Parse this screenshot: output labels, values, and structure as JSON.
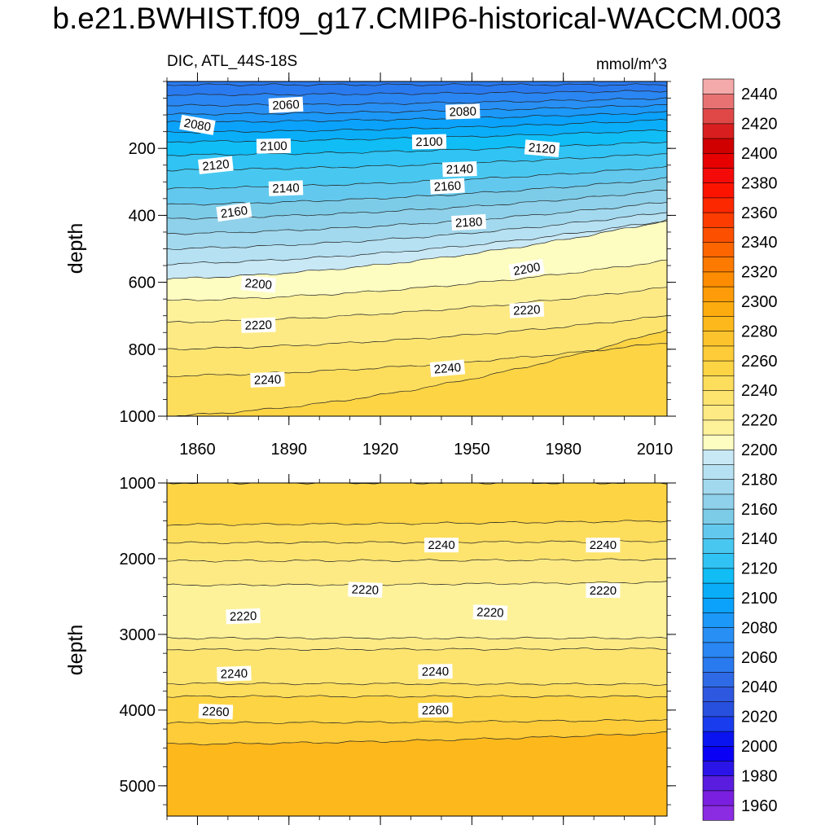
{
  "title": "b.e21.BWHIST.f09_g17.CMIP6-historical-WACCM.003",
  "chart_data": {
    "type": "contour",
    "variable": "DIC",
    "region": "ATL_44S-18S",
    "units": "mmol/m^3",
    "x_ticks": [
      1860,
      1890,
      1920,
      1950,
      1980,
      2010
    ],
    "xlim": [
      1850,
      2014
    ],
    "top_panel": {
      "ylabel": "depth",
      "ylim": [
        0,
        1000
      ],
      "y_ticks": [
        200,
        400,
        600,
        800,
        1000
      ],
      "contours": [
        {
          "level": 2050,
          "depth_start": 10,
          "depth_end": 10
        },
        {
          "level": 2060,
          "depth_start": 40,
          "depth_end": 28
        },
        {
          "level": 2070,
          "depth_start": 72,
          "depth_end": 50
        },
        {
          "level": 2080,
          "depth_start": 98,
          "depth_end": 70
        },
        {
          "level": 2090,
          "depth_start": 122,
          "depth_end": 92
        },
        {
          "level": 2100,
          "depth_start": 152,
          "depth_end": 115
        },
        {
          "level": 2110,
          "depth_start": 180,
          "depth_end": 145
        },
        {
          "level": 2120,
          "depth_start": 220,
          "depth_end": 180
        },
        {
          "level": 2130,
          "depth_start": 265,
          "depth_end": 215
        },
        {
          "level": 2140,
          "depth_start": 320,
          "depth_end": 255
        },
        {
          "level": 2150,
          "depth_start": 368,
          "depth_end": 290
        },
        {
          "level": 2160,
          "depth_start": 410,
          "depth_end": 325
        },
        {
          "level": 2170,
          "depth_start": 455,
          "depth_end": 360
        },
        {
          "level": 2180,
          "depth_start": 500,
          "depth_end": 390
        },
        {
          "level": 2190,
          "depth_start": 545,
          "depth_end": 415
        },
        {
          "level": 2200,
          "depth_start": 590,
          "depth_end": 415
        },
        {
          "level": 2210,
          "depth_start": 655,
          "depth_end": 535
        },
        {
          "level": 2220,
          "depth_start": 720,
          "depth_end": 615
        },
        {
          "level": 2230,
          "depth_start": 800,
          "depth_end": 700
        },
        {
          "level": 2240,
          "depth_start": 880,
          "depth_end": 780
        },
        {
          "level": 2250,
          "depth_start": 1000,
          "depth_end": 740
        }
      ],
      "labels": [
        {
          "text": "2060",
          "year": 1889,
          "depth": 70,
          "angle": -3
        },
        {
          "text": "2080",
          "year": 1947,
          "depth": 90,
          "angle": -2
        },
        {
          "text": "2080",
          "year": 1860,
          "depth": 130,
          "angle": 10
        },
        {
          "text": "2100",
          "year": 1885,
          "depth": 193,
          "angle": -1
        },
        {
          "text": "2100",
          "year": 1936,
          "depth": 180,
          "angle": -1
        },
        {
          "text": "2120",
          "year": 1973,
          "depth": 200,
          "angle": 5
        },
        {
          "text": "2120",
          "year": 1866,
          "depth": 250,
          "angle": -6
        },
        {
          "text": "2140",
          "year": 1946,
          "depth": 262,
          "angle": -2
        },
        {
          "text": "2140",
          "year": 1889,
          "depth": 319,
          "angle": -2
        },
        {
          "text": "2160",
          "year": 1942,
          "depth": 313,
          "angle": -3
        },
        {
          "text": "2160",
          "year": 1872,
          "depth": 390,
          "angle": -8
        },
        {
          "text": "2180",
          "year": 1949,
          "depth": 421,
          "angle": -3
        },
        {
          "text": "2200",
          "year": 1968,
          "depth": 560,
          "angle": -10
        },
        {
          "text": "2200",
          "year": 1880,
          "depth": 605,
          "angle": 5
        },
        {
          "text": "2220",
          "year": 1968,
          "depth": 683,
          "angle": -3
        },
        {
          "text": "2220",
          "year": 1880,
          "depth": 728,
          "angle": -2
        },
        {
          "text": "2240",
          "year": 1942,
          "depth": 857,
          "angle": -5
        },
        {
          "text": "2240",
          "year": 1883,
          "depth": 891,
          "angle": -2
        }
      ]
    },
    "bottom_panel": {
      "ylabel": "depth",
      "ylim": [
        1000,
        5400
      ],
      "y_ticks": [
        1000,
        2000,
        3000,
        4000,
        5000
      ],
      "contours": [
        {
          "level": 2260,
          "depth_start": 1000,
          "depth_end": 1000
        },
        {
          "level": 2250,
          "depth_start": 1550,
          "depth_end": 1500
        },
        {
          "level": 2240,
          "depth_start": 1790,
          "depth_end": 1770
        },
        {
          "level": 2230,
          "depth_start": 2030,
          "depth_end": 2010
        },
        {
          "level": 2220,
          "depth_start": 2350,
          "depth_end": 2310
        },
        {
          "level": 2220,
          "depth_start": 3050,
          "depth_end": 3050
        },
        {
          "level": 2230,
          "depth_start": 3200,
          "depth_end": 3190
        },
        {
          "level": 2240,
          "depth_start": 3650,
          "depth_end": 3660
        },
        {
          "level": 2250,
          "depth_start": 3820,
          "depth_end": 3820
        },
        {
          "level": 2260,
          "depth_start": 4170,
          "depth_end": 4130
        },
        {
          "level": 2270,
          "depth_start": 4450,
          "depth_end": 4300
        }
      ],
      "labels": [
        {
          "text": "2240",
          "year": 1940,
          "depth": 1820,
          "angle": 0
        },
        {
          "text": "2240",
          "year": 1993,
          "depth": 1820,
          "angle": 0
        },
        {
          "text": "2220",
          "year": 1915,
          "depth": 2410,
          "angle": 2
        },
        {
          "text": "2220",
          "year": 1993,
          "depth": 2420,
          "angle": 0
        },
        {
          "text": "2220",
          "year": 1956,
          "depth": 2710,
          "angle": 2
        },
        {
          "text": "2220",
          "year": 1875,
          "depth": 2760,
          "angle": -2
        },
        {
          "text": "2240",
          "year": 1872,
          "depth": 3520,
          "angle": -2
        },
        {
          "text": "2240",
          "year": 1938,
          "depth": 3490,
          "angle": -1
        },
        {
          "text": "2260",
          "year": 1866,
          "depth": 4020,
          "angle": 2
        },
        {
          "text": "2260",
          "year": 1938,
          "depth": 4000,
          "angle": -1
        }
      ]
    },
    "colorbar": {
      "levels": [
        1960,
        1970,
        1980,
        1990,
        2000,
        2010,
        2020,
        2030,
        2040,
        2050,
        2060,
        2070,
        2080,
        2090,
        2100,
        2110,
        2120,
        2130,
        2140,
        2150,
        2160,
        2170,
        2180,
        2190,
        2200,
        2210,
        2220,
        2230,
        2240,
        2250,
        2260,
        2270,
        2280,
        2290,
        2300,
        2310,
        2320,
        2330,
        2340,
        2350,
        2360,
        2370,
        2380,
        2390,
        2400,
        2410,
        2420,
        2430,
        2440,
        2450
      ],
      "tick_labels": [
        1960,
        1980,
        2000,
        2020,
        2040,
        2060,
        2080,
        2100,
        2120,
        2140,
        2160,
        2180,
        2200,
        2220,
        2240,
        2260,
        2280,
        2300,
        2320,
        2340,
        2360,
        2380,
        2400,
        2420,
        2440
      ],
      "colors": [
        "#8b2be2",
        "#7a1fe0",
        "#5a1de0",
        "#2a14e8",
        "#0a00f5",
        "#0a14f0",
        "#1a3cef",
        "#2750df",
        "#2f58e0",
        "#2f6ae6",
        "#2a7aef",
        "#2a86f2",
        "#2890f5",
        "#1b98f8",
        "#0aa2fb",
        "#0aaef8",
        "#10bdf5",
        "#30c3f3",
        "#48c8f0",
        "#63c8ee",
        "#7ccce8",
        "#8fd1ea",
        "#a3d9ee",
        "#b6e1f2",
        "#c8e8f5",
        "#fdfcc1",
        "#fdf19a",
        "#fdea85",
        "#fde46f",
        "#fddd5c",
        "#fdd444",
        "#fdcc38",
        "#fdc32c",
        "#fdb81c",
        "#fdac10",
        "#fd9c08",
        "#fd8c00",
        "#fc7a00",
        "#fc6500",
        "#fc5000",
        "#fc3c00",
        "#fc2800",
        "#fc1400",
        "#f50a0a",
        "#e60000",
        "#d00000",
        "#d81e1e",
        "#e04848",
        "#e87272",
        "#f4aaaa"
      ]
    }
  }
}
